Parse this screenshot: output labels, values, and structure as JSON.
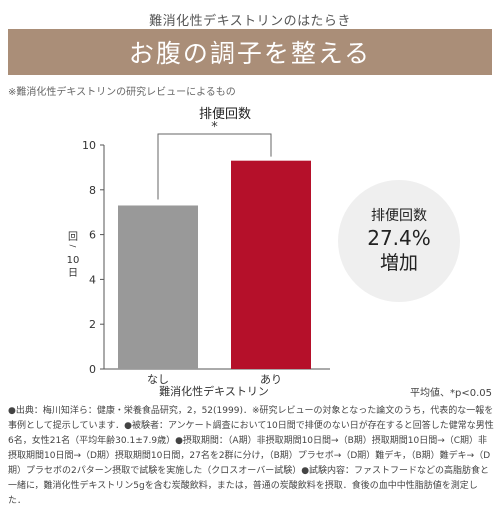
{
  "header": {
    "top_title": "難消化性デキストリンのはたらき",
    "banner_title": "お腹の調子を整える"
  },
  "source_note": "※難消化性デキストリンの研究レビューによるもの",
  "chart_data": {
    "type": "bar",
    "title": "排便回数",
    "categories": [
      "なし",
      "あり"
    ],
    "values": [
      7.3,
      9.3
    ],
    "ylim": [
      0,
      10
    ],
    "yticks": [
      0,
      2,
      4,
      6,
      8,
      10
    ],
    "ylabel": "回/10日",
    "xlabel": "難消化性デキストリン",
    "significance_marker": "*",
    "caption": "平均値、*p<0.05",
    "colors": [
      "#999999",
      "#b5102a"
    ],
    "grid": false
  },
  "result": {
    "line1": "排便回数",
    "line2": "27.4%",
    "line3": "増加"
  },
  "footnote": "●出典：梅川知洋ら：健康・栄養食品研究，2，52(1999)．※研究レビューの対象となった論文のうち，代表的な一報を事例として提示しています．●被験者：アンケート調査において10日間で排便のない日が存在すると回答した健常な男性6名，女性21名（平均年齢30.1±7.9歳）●摂取期間：（A期）非摂取期間10日間→（B期）摂取期間10日間→（C期）非摂取期間10日間→（D期）摂取期間10日間，27名を2群に分け，（B期）プラセボ→（D期）難デキ，（B期）難デキ→（D期）プラセボの2パターン摂取で試験を実施した（クロスオーバー試験）●試験内容：ファストフードなどの高脂肪食と一緒に，難消化性デキストリン5gを含む炭酸飲料，または，普通の炭酸飲料を摂取．食後の血中中性脂肪値を測定した．"
}
